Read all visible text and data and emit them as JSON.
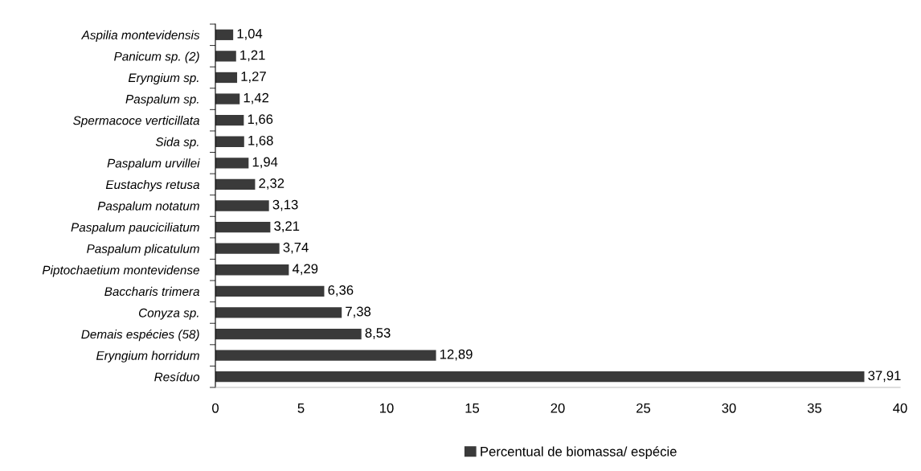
{
  "chart_data": {
    "type": "bar",
    "orientation": "horizontal",
    "categories": [
      "Aspilia montevidensis",
      "Panicum sp. (2)",
      "Eryngium sp.",
      "Paspalum sp.",
      "Spermacoce verticillata",
      "Sida sp.",
      "Paspalum urvillei",
      "Eustachys retusa",
      "Paspalum notatum",
      "Paspalum pauciciliatum",
      "Paspalum plicatulum",
      "Piptochaetium montevidense",
      "Baccharis trimera",
      "Conyza sp.",
      "Demais espécies (58)",
      "Eryngium horridum",
      "Resíduo"
    ],
    "series": [
      {
        "name": "Percentual de biomassa/ espécie",
        "color": "#3a3a3a",
        "values": [
          1.04,
          1.21,
          1.27,
          1.42,
          1.66,
          1.68,
          1.94,
          2.32,
          3.13,
          3.21,
          3.74,
          4.29,
          6.36,
          7.38,
          8.53,
          12.89,
          37.91
        ],
        "value_labels": [
          "1,04",
          "1,21",
          "1,27",
          "1,42",
          "1,66",
          "1,68",
          "1,94",
          "2,32",
          "3,13",
          "3,21",
          "3,74",
          "4,29",
          "6,36",
          "7,38",
          "8,53",
          "12,89",
          "37,91"
        ]
      }
    ],
    "xlim": [
      0,
      40
    ],
    "xticks": [
      0,
      5,
      10,
      15,
      20,
      25,
      30,
      35,
      40
    ],
    "grid": false,
    "legend": "bottom"
  }
}
